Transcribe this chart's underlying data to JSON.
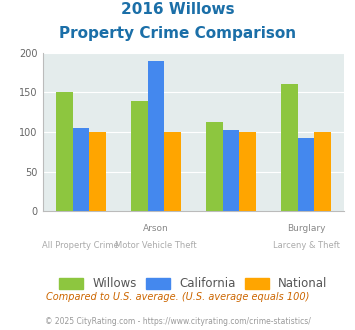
{
  "title_line1": "2016 Willows",
  "title_line2": "Property Crime Comparison",
  "groups": [
    {
      "willows": 150,
      "california": 105,
      "national": 100
    },
    {
      "willows": 139,
      "california": 190,
      "national": 100
    },
    {
      "willows": 113,
      "california": 103,
      "national": 100
    },
    {
      "willows": 160,
      "california": 93,
      "national": 100
    }
  ],
  "top_labels": [
    "",
    "Arson",
    "",
    "Burglary"
  ],
  "bottom_labels": [
    "All Property Crime",
    "Motor Vehicle Theft",
    "",
    "Larceny & Theft"
  ],
  "color_willows": "#8DC63F",
  "color_california": "#4488EE",
  "color_national": "#FFA500",
  "ylim": [
    0,
    200
  ],
  "yticks": [
    0,
    50,
    100,
    150,
    200
  ],
  "background_chart": "#E4ECEC",
  "legend_labels": [
    "Willows",
    "California",
    "National"
  ],
  "footnote1": "Compared to U.S. average. (U.S. average equals 100)",
  "footnote2": "© 2025 CityRating.com - https://www.cityrating.com/crime-statistics/",
  "title_color": "#1B6FA8",
  "footnote1_color": "#CC6600",
  "footnote2_color": "#999999",
  "top_label_color": "#888888",
  "bottom_label_color": "#AAAAAA"
}
